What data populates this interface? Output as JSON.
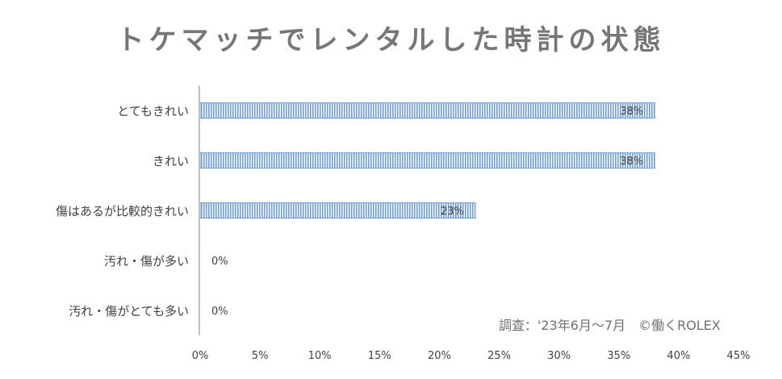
{
  "chart_data": {
    "type": "bar",
    "orientation": "horizontal",
    "title": "トケマッチでレンタルした時計の状態",
    "categories": [
      "とてもきれい",
      "きれい",
      "傷はあるが比較的きれい",
      "汚れ・傷が多い",
      "汚れ・傷がとても多い"
    ],
    "values": [
      38,
      38,
      23,
      0,
      0
    ],
    "value_labels": [
      "38%",
      "38%",
      "23%",
      "0%",
      "0%"
    ],
    "xlim": [
      0,
      45
    ],
    "xticks": [
      "0%",
      "5%",
      "10%",
      "15%",
      "20%",
      "25%",
      "30%",
      "35%",
      "40%",
      "45%"
    ],
    "grid": false,
    "bar_color": "#6f9fd8",
    "source": "調査：'23年6月〜7月　©働くROLEX"
  }
}
